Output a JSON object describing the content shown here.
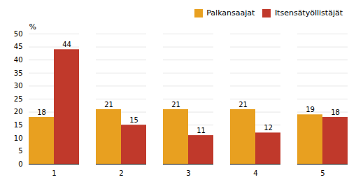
{
  "chart_data": {
    "type": "bar",
    "categories": [
      "1",
      "2",
      "3",
      "4",
      "5"
    ],
    "series": [
      {
        "name": "Palkansaajat",
        "color": "#E8A020",
        "values": [
          18,
          21,
          21,
          21,
          19
        ]
      },
      {
        "name": "Itsensätyöllistäjät",
        "color": "#C0392B",
        "values": [
          44,
          15,
          11,
          12,
          18
        ]
      }
    ],
    "ylabel": "%",
    "ylim": [
      0,
      50
    ],
    "yticks": [
      0,
      5,
      10,
      15,
      20,
      25,
      30,
      35,
      40,
      45,
      50
    ],
    "grid": true,
    "legend": "upper right",
    "data_labels": true
  }
}
